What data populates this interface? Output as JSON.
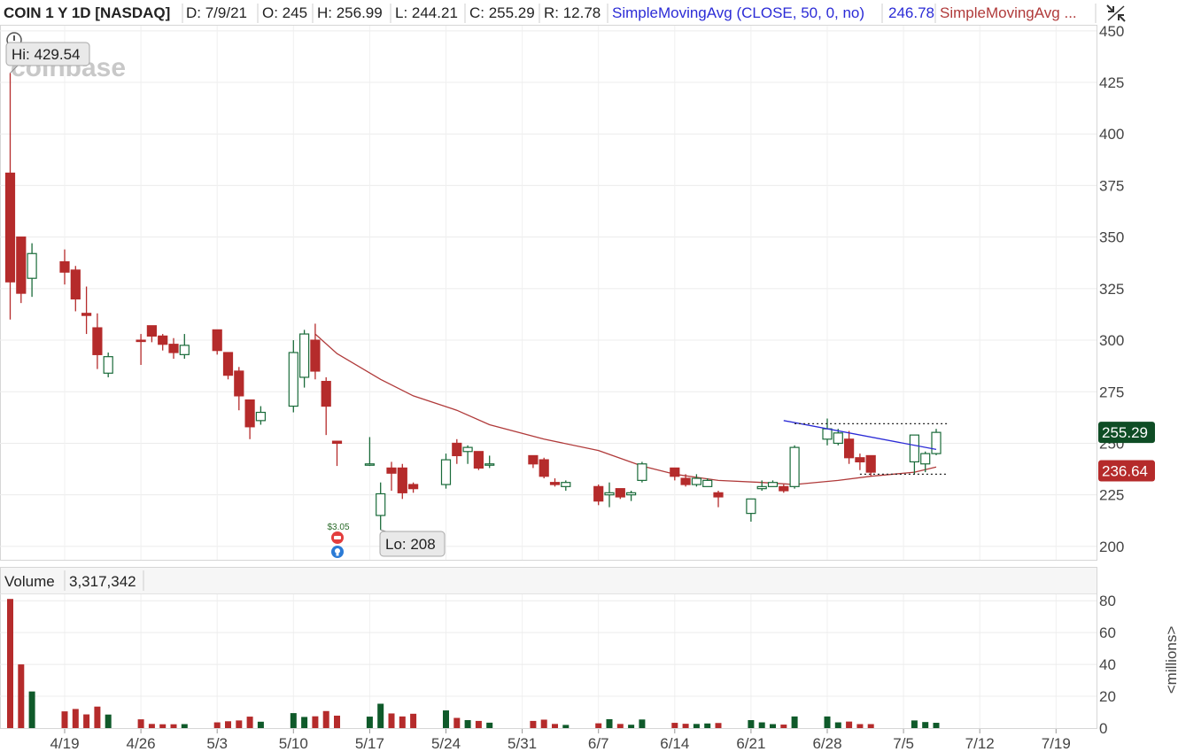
{
  "header": {
    "symbol": "COIN 1 Y 1D [NASDAQ]",
    "date": "D: 7/9/21",
    "open": "O: 245",
    "high": "H: 256.99",
    "low": "L: 244.21",
    "close": "C: 255.29",
    "range": "R: 12.78",
    "sma50_label": "SimpleMovingAvg (CLOSE, 50, 0, no)",
    "sma50_value": "246.78",
    "sma2_label": "SimpleMovingAvg ...",
    "sma50_color": "#2b2bd6",
    "sma2_color": "#b03a3a"
  },
  "watermark": "coinbase",
  "chart_data": {
    "type": "candlestick",
    "price_axis": {
      "ticks": [
        200,
        225,
        250,
        275,
        300,
        325,
        350,
        375,
        400,
        425,
        450
      ],
      "min": 193.5,
      "max": 452.5
    },
    "date_ticks": [
      {
        "label": "4/19",
        "d": "2021-04-19"
      },
      {
        "label": "4/26",
        "d": "2021-04-26"
      },
      {
        "label": "5/3",
        "d": "2021-05-03"
      },
      {
        "label": "5/10",
        "d": "2021-05-10"
      },
      {
        "label": "5/17",
        "d": "2021-05-17"
      },
      {
        "label": "5/24",
        "d": "2021-05-24"
      },
      {
        "label": "5/31",
        "d": "2021-05-31"
      },
      {
        "label": "6/7",
        "d": "2021-06-07"
      },
      {
        "label": "6/14",
        "d": "2021-06-14"
      },
      {
        "label": "6/21",
        "d": "2021-06-21"
      },
      {
        "label": "6/28",
        "d": "2021-06-28"
      },
      {
        "label": "7/5",
        "d": "2021-07-05"
      },
      {
        "label": "7/12",
        "d": "2021-07-12"
      },
      {
        "label": "7/19",
        "d": "2021-07-19"
      }
    ],
    "candles": [
      {
        "d": "2021-04-14",
        "o": 381,
        "h": 429.54,
        "l": 310,
        "c": 328.28,
        "v": 81.1
      },
      {
        "d": "2021-04-15",
        "o": 350,
        "h": 350,
        "l": 318,
        "c": 322.75,
        "v": 40
      },
      {
        "d": "2021-04-16",
        "o": 330,
        "h": 347,
        "l": 321,
        "c": 342,
        "v": 23
      },
      {
        "d": "2021-04-19",
        "o": 338,
        "h": 344,
        "l": 327,
        "c": 333,
        "v": 10.5
      },
      {
        "d": "2021-04-20",
        "o": 334,
        "h": 336,
        "l": 314,
        "c": 320,
        "v": 12
      },
      {
        "d": "2021-04-21",
        "o": 313,
        "h": 326,
        "l": 303,
        "c": 312,
        "v": 8.6
      },
      {
        "d": "2021-04-22",
        "o": 306,
        "h": 313,
        "l": 286,
        "c": 293,
        "v": 13.5
      },
      {
        "d": "2021-04-23",
        "o": 284,
        "h": 294,
        "l": 282,
        "c": 292,
        "v": 8.5
      },
      {
        "d": "2021-04-26",
        "o": 300,
        "h": 303,
        "l": 288,
        "c": 299.5,
        "v": 5.5
      },
      {
        "d": "2021-04-27",
        "o": 307,
        "h": 307,
        "l": 299,
        "c": 302,
        "v": 2.6
      },
      {
        "d": "2021-04-28",
        "o": 302,
        "h": 303,
        "l": 295,
        "c": 298,
        "v": 2.4
      },
      {
        "d": "2021-04-29",
        "o": 298,
        "h": 301,
        "l": 291,
        "c": 294,
        "v": 2.4
      },
      {
        "d": "2021-04-30",
        "o": 293,
        "h": 303,
        "l": 291,
        "c": 297.5,
        "v": 2.5
      },
      {
        "d": "2021-05-03",
        "o": 305,
        "h": 305,
        "l": 293,
        "c": 295,
        "v": 3.6
      },
      {
        "d": "2021-05-04",
        "o": 294,
        "h": 294,
        "l": 281,
        "c": 283,
        "v": 4.3
      },
      {
        "d": "2021-05-05",
        "o": 285,
        "h": 287,
        "l": 266,
        "c": 273,
        "v": 4.8
      },
      {
        "d": "2021-05-06",
        "o": 271,
        "h": 271,
        "l": 252,
        "c": 258,
        "v": 7.2
      },
      {
        "d": "2021-05-07",
        "o": 261,
        "h": 268,
        "l": 259,
        "c": 265,
        "v": 4.0
      },
      {
        "d": "2021-05-10",
        "o": 268,
        "h": 300,
        "l": 265,
        "c": 294,
        "v": 9.4
      },
      {
        "d": "2021-05-11",
        "o": 282,
        "h": 305,
        "l": 277,
        "c": 303,
        "v": 7.0
      },
      {
        "d": "2021-05-12",
        "o": 300,
        "h": 308,
        "l": 281,
        "c": 285,
        "v": 7.4
      },
      {
        "d": "2021-05-13",
        "o": 280,
        "h": 282,
        "l": 254,
        "c": 268,
        "v": 10.7
      },
      {
        "d": "2021-05-14",
        "o": 251,
        "h": 251,
        "l": 239,
        "c": 250,
        "v": 7.8
      },
      {
        "d": "2021-05-17",
        "o": 240,
        "h": 253,
        "l": 239,
        "c": 240,
        "v": 7.2
      },
      {
        "d": "2021-05-18",
        "o": 215,
        "h": 231,
        "l": 208,
        "c": 225.5,
        "v": 15.3
      },
      {
        "d": "2021-05-19",
        "o": 238,
        "h": 241,
        "l": 227,
        "c": 235.5,
        "v": 9.2
      },
      {
        "d": "2021-05-20",
        "o": 238,
        "h": 240,
        "l": 223,
        "c": 226,
        "v": 7.3
      },
      {
        "d": "2021-05-21",
        "o": 230,
        "h": 231,
        "l": 226,
        "c": 228,
        "v": 9.0
      },
      {
        "d": "2021-05-24",
        "o": 230,
        "h": 245,
        "l": 228,
        "c": 242,
        "v": 11.1
      },
      {
        "d": "2021-05-25",
        "o": 250,
        "h": 252,
        "l": 240,
        "c": 244,
        "v": 6.4
      },
      {
        "d": "2021-05-26",
        "o": 246,
        "h": 249,
        "l": 240,
        "c": 248,
        "v": 5.0
      },
      {
        "d": "2021-05-27",
        "o": 246,
        "h": 246,
        "l": 237,
        "c": 238,
        "v": 4.5
      },
      {
        "d": "2021-05-28",
        "o": 240,
        "h": 244,
        "l": 238,
        "c": 240,
        "v": 3.4
      },
      {
        "d": "2021-06-01",
        "o": 244,
        "h": 244,
        "l": 238,
        "c": 240,
        "v": 4.5
      },
      {
        "d": "2021-06-02",
        "o": 242,
        "h": 243,
        "l": 233,
        "c": 234,
        "v": 5.3
      },
      {
        "d": "2021-06-03",
        "o": 231,
        "h": 233,
        "l": 229,
        "c": 230,
        "v": 2.6
      },
      {
        "d": "2021-06-04",
        "o": 229,
        "h": 232,
        "l": 227,
        "c": 231,
        "v": 2.0
      },
      {
        "d": "2021-06-07",
        "o": 229,
        "h": 230,
        "l": 220,
        "c": 222,
        "v": 3.0
      },
      {
        "d": "2021-06-08",
        "o": 225,
        "h": 231,
        "l": 219,
        "c": 226,
        "v": 5.6
      },
      {
        "d": "2021-06-09",
        "o": 228,
        "h": 228,
        "l": 223,
        "c": 224,
        "v": 2.6
      },
      {
        "d": "2021-06-10",
        "o": 225,
        "h": 227,
        "l": 222,
        "c": 226,
        "v": 2.1
      },
      {
        "d": "2021-06-11",
        "o": 232,
        "h": 241,
        "l": 231,
        "c": 240,
        "v": 5.4
      },
      {
        "d": "2021-06-14",
        "o": 238,
        "h": 238,
        "l": 232,
        "c": 234,
        "v": 3.3
      },
      {
        "d": "2021-06-15",
        "o": 233,
        "h": 235,
        "l": 229,
        "c": 230,
        "v": 2.7
      },
      {
        "d": "2021-06-16",
        "o": 230,
        "h": 235,
        "l": 229,
        "c": 233,
        "v": 2.6
      },
      {
        "d": "2021-06-17",
        "o": 229,
        "h": 233,
        "l": 229,
        "c": 232,
        "v": 2.9
      },
      {
        "d": "2021-06-18",
        "o": 226,
        "h": 227,
        "l": 219,
        "c": 224,
        "v": 3.2
      },
      {
        "d": "2021-06-21",
        "o": 216,
        "h": 223,
        "l": 212,
        "c": 223,
        "v": 5.0
      },
      {
        "d": "2021-06-22",
        "o": 228,
        "h": 232,
        "l": 227,
        "c": 229,
        "v": 3.6
      },
      {
        "d": "2021-06-23",
        "o": 229,
        "h": 232,
        "l": 229,
        "c": 231,
        "v": 2.5
      },
      {
        "d": "2021-06-24",
        "o": 229,
        "h": 230,
        "l": 226,
        "c": 227,
        "v": 2.2
      },
      {
        "d": "2021-06-25",
        "o": 229,
        "h": 249,
        "l": 228,
        "c": 248,
        "v": 7.3
      },
      {
        "d": "2021-06-28",
        "o": 252,
        "h": 262,
        "l": 249,
        "c": 257,
        "v": 7.3
      },
      {
        "d": "2021-06-29",
        "o": 250,
        "h": 257,
        "l": 249,
        "c": 255,
        "v": 3.6
      },
      {
        "d": "2021-06-30",
        "o": 252,
        "h": 256,
        "l": 240,
        "c": 243,
        "v": 4.1
      },
      {
        "d": "2021-07-01",
        "o": 243,
        "h": 245,
        "l": 237,
        "c": 241,
        "v": 2.5
      },
      {
        "d": "2021-07-02",
        "o": 244,
        "h": 244,
        "l": 234,
        "c": 236,
        "v": 2.5
      },
      {
        "d": "2021-07-06",
        "o": 241,
        "h": 253,
        "l": 235,
        "c": 254,
        "v": 4.8
      },
      {
        "d": "2021-07-07",
        "o": 240,
        "h": 246,
        "l": 236,
        "c": 245,
        "v": 3.8
      },
      {
        "d": "2021-07-08",
        "o": 245,
        "h": 256.99,
        "l": 244.21,
        "c": 255.29,
        "v": 3.32
      }
    ],
    "sma50_line": [
      [
        "2021-06-24",
        261
      ],
      [
        "2021-07-08",
        247
      ]
    ],
    "sma2_line": [
      [
        "2021-05-12",
        303
      ],
      [
        "2021-05-14",
        293.5
      ],
      [
        "2021-05-18",
        281
      ],
      [
        "2021-05-21",
        273
      ],
      [
        "2021-05-25",
        266
      ],
      [
        "2021-05-28",
        259
      ],
      [
        "2021-06-02",
        252
      ],
      [
        "2021-06-07",
        246.5
      ],
      [
        "2021-06-11",
        239
      ],
      [
        "2021-06-14",
        235
      ],
      [
        "2021-06-18",
        232
      ],
      [
        "2021-06-22",
        231
      ],
      [
        "2021-06-25",
        230
      ],
      [
        "2021-06-29",
        232
      ],
      [
        "2021-07-02",
        234
      ],
      [
        "2021-07-06",
        236
      ],
      [
        "2021-07-08",
        238.5
      ]
    ],
    "resistance_line": [
      [
        "2021-06-25",
        259.5
      ],
      [
        "2021-07-09",
        259.5
      ]
    ],
    "support_line": [
      [
        "2021-07-01",
        235
      ],
      [
        "2021-07-09",
        235
      ]
    ],
    "hi_label": "Hi: 429.54",
    "lo_label": "Lo: 208",
    "last_price_label": "255.29",
    "sma_price_label": "236.64",
    "last_price": 255.29,
    "sma_price": 236.64,
    "dividend_label": "$3.05",
    "colors": {
      "up": "#1a6b3a",
      "down": "#b52b2b",
      "up_fill": "#ffffff",
      "down_fill": "#b52b2b",
      "vol_up": "#0f5a2a",
      "vol_down": "#b52b2b"
    },
    "volume": {
      "label": "Volume",
      "value": "3,317,342",
      "ticks": [
        0,
        20,
        40,
        60,
        80
      ],
      "unit_label": "<millions>",
      "min": 0,
      "max": 84
    }
  }
}
